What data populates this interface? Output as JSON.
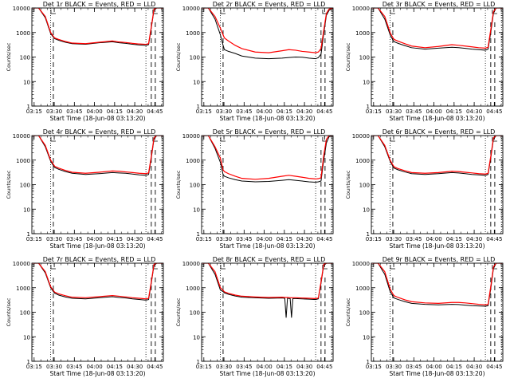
{
  "chart_data": [
    {
      "type": "line",
      "title": "Det 1r BLACK = Events, RED = LLD",
      "xlabel": "Start Time (18-Jun-08 03:13:20)",
      "ylabel": "Counts/sec",
      "x_ticks": [
        "03:15",
        "03:30",
        "03:45",
        "04:00",
        "04:15",
        "04:30",
        "04:45"
      ],
      "y_ticks": [
        "1",
        "10",
        "100",
        "1000",
        "10000"
      ],
      "y_scale": "log",
      "xlim_minutes": [
        0,
        98
      ],
      "ylim": [
        1,
        10000
      ],
      "x_minutes": [
        0,
        5,
        10,
        14,
        16,
        17,
        20,
        25,
        30,
        40,
        50,
        60,
        65,
        70,
        75,
        80,
        85,
        87,
        89,
        91,
        93,
        95,
        98
      ],
      "series": [
        {
          "color": "#000000",
          "values": [
            10000,
            10000,
            4000,
            900,
            650,
            560,
            480,
            400,
            350,
            330,
            380,
            420,
            380,
            360,
            330,
            310,
            300,
            320,
            1500,
            8000,
            10000,
            10000,
            10000
          ]
        },
        {
          "color": "#ff0000",
          "values": [
            10000,
            10000,
            4500,
            1000,
            700,
            600,
            520,
            430,
            370,
            350,
            400,
            450,
            410,
            390,
            360,
            340,
            330,
            350,
            1700,
            9000,
            10000,
            10000,
            10000
          ]
        }
      ],
      "dotted_lines_minutes": [
        14,
        85,
        97
      ],
      "dashed_lines_minutes": [
        16,
        89,
        92
      ]
    },
    {
      "type": "line",
      "title": "Det 2r BLACK = Events, RED = LLD",
      "xlabel": "Start Time (18-Jun-08 03:13:20)",
      "ylabel": "Counts/sec",
      "x_ticks": [
        "03:15",
        "03:30",
        "03:45",
        "04:00",
        "04:15",
        "04:30",
        "04:45"
      ],
      "y_ticks": [
        "1",
        "10",
        "100",
        "1000",
        "10000"
      ],
      "y_scale": "log",
      "xlim_minutes": [
        0,
        98
      ],
      "ylim": [
        1,
        10000
      ],
      "x_minutes": [
        0,
        5,
        10,
        14,
        16,
        17,
        20,
        25,
        30,
        40,
        50,
        60,
        65,
        70,
        75,
        80,
        85,
        87,
        89,
        91,
        93,
        95,
        98
      ],
      "series": [
        {
          "color": "#000000",
          "values": [
            10000,
            10000,
            3500,
            800,
            300,
            200,
            170,
            140,
            110,
            90,
            85,
            90,
            95,
            100,
            98,
            90,
            85,
            95,
            130,
            900,
            5000,
            8000,
            10000
          ]
        },
        {
          "color": "#ff0000",
          "values": [
            10000,
            10000,
            4500,
            1500,
            800,
            600,
            450,
            300,
            220,
            160,
            150,
            180,
            200,
            190,
            170,
            160,
            150,
            160,
            220,
            1200,
            6000,
            9000,
            10000
          ]
        }
      ],
      "dotted_lines_minutes": [
        14,
        85,
        97
      ],
      "dashed_lines_minutes": [
        16,
        89,
        92
      ]
    },
    {
      "type": "line",
      "title": "Det 3r BLACK = Events, RED = LLD",
      "xlabel": "Start Time (18-Jun-08 03:13:20)",
      "ylabel": "Counts/sec",
      "x_ticks": [
        "03:15",
        "03:30",
        "03:45",
        "04:00",
        "04:15",
        "04:30",
        "04:45"
      ],
      "y_ticks": [
        "1",
        "10",
        "100",
        "1000",
        "10000"
      ],
      "y_scale": "log",
      "xlim_minutes": [
        0,
        98
      ],
      "ylim": [
        1,
        10000
      ],
      "x_minutes": [
        0,
        5,
        10,
        14,
        16,
        17,
        20,
        25,
        30,
        40,
        50,
        60,
        65,
        70,
        75,
        80,
        85,
        87,
        89,
        91,
        93,
        95,
        98
      ],
      "series": [
        {
          "color": "#000000",
          "values": [
            10000,
            10000,
            3500,
            800,
            500,
            420,
            360,
            290,
            240,
            210,
            230,
            250,
            240,
            225,
            210,
            200,
            190,
            210,
            1000,
            6000,
            10000,
            10000,
            10000
          ]
        },
        {
          "color": "#ff0000",
          "values": [
            10000,
            10000,
            4500,
            1000,
            620,
            520,
            440,
            350,
            280,
            240,
            270,
            320,
            300,
            280,
            260,
            240,
            230,
            250,
            1300,
            7000,
            10000,
            10000,
            10000
          ]
        }
      ],
      "dotted_lines_minutes": [
        14,
        85,
        97
      ],
      "dashed_lines_minutes": [
        16,
        89,
        92
      ]
    },
    {
      "type": "line",
      "title": "Det 4r BLACK = Events, RED = LLD",
      "xlabel": "Start Time (18-Jun-08 03:13:20)",
      "ylabel": "Counts/sec",
      "x_ticks": [
        "03:15",
        "03:30",
        "03:45",
        "04:00",
        "04:15",
        "04:30",
        "04:45"
      ],
      "y_ticks": [
        "1",
        "10",
        "100",
        "1000",
        "10000"
      ],
      "y_scale": "log",
      "xlim_minutes": [
        0,
        98
      ],
      "ylim": [
        1,
        10000
      ],
      "x_minutes": [
        0,
        5,
        10,
        14,
        16,
        17,
        20,
        25,
        30,
        40,
        50,
        60,
        65,
        70,
        75,
        80,
        85,
        87,
        89,
        91,
        93,
        95,
        98
      ],
      "series": [
        {
          "color": "#000000",
          "values": [
            10000,
            10000,
            3500,
            900,
            600,
            500,
            420,
            340,
            290,
            260,
            280,
            310,
            300,
            290,
            270,
            250,
            240,
            260,
            1200,
            7000,
            10000,
            10000,
            10000
          ]
        },
        {
          "color": "#ff0000",
          "values": [
            10000,
            10000,
            4000,
            1000,
            680,
            560,
            470,
            380,
            320,
            290,
            320,
            360,
            350,
            330,
            310,
            290,
            280,
            300,
            1400,
            8000,
            10000,
            10000,
            10000
          ]
        }
      ],
      "dotted_lines_minutes": [
        14,
        85,
        97
      ],
      "dashed_lines_minutes": [
        16,
        89,
        92
      ]
    },
    {
      "type": "line",
      "title": "Det 5r BLACK = Events, RED = LLD",
      "xlabel": "Start Time (18-Jun-08 03:13:20)",
      "ylabel": "Counts/sec",
      "x_ticks": [
        "03:15",
        "03:30",
        "03:45",
        "04:00",
        "04:15",
        "04:30",
        "04:45"
      ],
      "y_ticks": [
        "1",
        "10",
        "100",
        "1000",
        "10000"
      ],
      "y_scale": "log",
      "xlim_minutes": [
        0,
        98
      ],
      "ylim": [
        1,
        10000
      ],
      "x_minutes": [
        0,
        5,
        10,
        14,
        16,
        17,
        20,
        25,
        30,
        40,
        50,
        60,
        65,
        70,
        75,
        80,
        85,
        87,
        89,
        91,
        93,
        95,
        98
      ],
      "series": [
        {
          "color": "#000000",
          "values": [
            10000,
            10000,
            3000,
            800,
            260,
            220,
            190,
            160,
            140,
            130,
            135,
            150,
            160,
            150,
            140,
            130,
            125,
            130,
            140,
            1000,
            5000,
            9000,
            10000
          ]
        },
        {
          "color": "#ff0000",
          "values": [
            10000,
            10000,
            3500,
            1200,
            400,
            340,
            280,
            220,
            180,
            165,
            180,
            220,
            240,
            220,
            200,
            180,
            170,
            175,
            190,
            1500,
            7000,
            10000,
            10000
          ]
        }
      ],
      "dotted_lines_minutes": [
        14,
        85,
        97
      ],
      "dashed_lines_minutes": [
        16,
        89,
        92
      ]
    },
    {
      "type": "line",
      "title": "Det 6r BLACK = Events, RED = LLD",
      "xlabel": "Start Time (18-Jun-08 03:13:20)",
      "ylabel": "Counts/sec",
      "x_ticks": [
        "03:15",
        "03:30",
        "03:45",
        "04:00",
        "04:15",
        "04:30",
        "04:45"
      ],
      "y_ticks": [
        "1",
        "10",
        "100",
        "1000",
        "10000"
      ],
      "y_scale": "log",
      "xlim_minutes": [
        0,
        98
      ],
      "ylim": [
        1,
        10000
      ],
      "x_minutes": [
        0,
        5,
        10,
        14,
        16,
        17,
        20,
        25,
        30,
        40,
        50,
        60,
        65,
        70,
        75,
        80,
        85,
        87,
        89,
        91,
        93,
        95,
        98
      ],
      "series": [
        {
          "color": "#000000",
          "values": [
            10000,
            10000,
            3500,
            900,
            560,
            470,
            400,
            330,
            280,
            260,
            280,
            310,
            300,
            280,
            260,
            250,
            240,
            260,
            1200,
            7000,
            10000,
            10000,
            10000
          ]
        },
        {
          "color": "#ff0000",
          "values": [
            10000,
            10000,
            4000,
            1000,
            640,
            530,
            450,
            370,
            310,
            290,
            310,
            350,
            340,
            320,
            300,
            280,
            270,
            290,
            1400,
            8000,
            10000,
            10000,
            10000
          ]
        }
      ],
      "dotted_lines_minutes": [
        14,
        85,
        97
      ],
      "dashed_lines_minutes": [
        16,
        89,
        92
      ]
    },
    {
      "type": "line",
      "title": "Det 7r BLACK = Events, RED = LLD",
      "xlabel": "Start Time (18-Jun-08 03:13:20)",
      "ylabel": "Counts/sec",
      "x_ticks": [
        "03:15",
        "03:30",
        "03:45",
        "04:00",
        "04:15",
        "04:30",
        "04:45"
      ],
      "y_ticks": [
        "1",
        "10",
        "100",
        "1000",
        "10000"
      ],
      "y_scale": "log",
      "xlim_minutes": [
        0,
        98
      ],
      "ylim": [
        1,
        10000
      ],
      "x_minutes": [
        0,
        5,
        10,
        14,
        16,
        17,
        20,
        25,
        30,
        40,
        50,
        60,
        65,
        70,
        75,
        80,
        85,
        87,
        89,
        91,
        93,
        95,
        98
      ],
      "series": [
        {
          "color": "#000000",
          "values": [
            10000,
            10000,
            4000,
            1000,
            700,
            600,
            500,
            420,
            370,
            350,
            390,
            430,
            400,
            380,
            350,
            330,
            310,
            330,
            1500,
            8000,
            10000,
            10000,
            10000
          ]
        },
        {
          "color": "#ff0000",
          "values": [
            10000,
            10000,
            4500,
            1100,
            780,
            660,
            560,
            470,
            410,
            390,
            430,
            480,
            450,
            420,
            390,
            370,
            350,
            370,
            1700,
            9000,
            10000,
            10000,
            10000
          ]
        }
      ],
      "dotted_lines_minutes": [
        14,
        85,
        97
      ],
      "dashed_lines_minutes": [
        16,
        89,
        92
      ]
    },
    {
      "type": "line",
      "title": "Det 8r BLACK = Events, RED = LLD",
      "xlabel": "Start Time (18-Jun-08 03:13:20)",
      "ylabel": "Counts/sec",
      "x_ticks": [
        "03:15",
        "03:30",
        "03:45",
        "04:00",
        "04:15",
        "04:30",
        "04:45"
      ],
      "y_ticks": [
        "1",
        "10",
        "100",
        "1000",
        "10000"
      ],
      "y_scale": "log",
      "xlim_minutes": [
        0,
        98
      ],
      "ylim": [
        1,
        10000
      ],
      "x_minutes": [
        0,
        5,
        10,
        14,
        16,
        17,
        20,
        25,
        30,
        40,
        50,
        60,
        62,
        63,
        64,
        66,
        67,
        68,
        70,
        75,
        80,
        85,
        87,
        89,
        91,
        93,
        95,
        98
      ],
      "series": [
        {
          "color": "#000000",
          "values": [
            10000,
            10000,
            3500,
            800,
            700,
            620,
            540,
            460,
            410,
            390,
            370,
            380,
            370,
            60,
            370,
            360,
            60,
            360,
            360,
            350,
            340,
            330,
            350,
            1500,
            8000,
            10000,
            10000,
            10000
          ]
        },
        {
          "color": "#ff0000",
          "values": [
            10000,
            10000,
            4500,
            1000,
            780,
            680,
            590,
            500,
            450,
            420,
            400,
            410,
            400,
            400,
            400,
            390,
            390,
            390,
            390,
            380,
            370,
            360,
            380,
            1700,
            9000,
            10000,
            10000,
            10000
          ]
        }
      ],
      "dotted_lines_minutes": [
        14,
        85,
        97
      ],
      "dashed_lines_minutes": [
        16,
        89,
        92
      ]
    },
    {
      "type": "line",
      "title": "Det 9r BLACK = Events, RED = LLD",
      "xlabel": "Start Time (18-Jun-08 03:13:20)",
      "ylabel": "Counts/sec",
      "x_ticks": [
        "03:15",
        "03:30",
        "03:45",
        "04:00",
        "04:15",
        "04:30",
        "04:45"
      ],
      "y_ticks": [
        "1",
        "10",
        "100",
        "1000",
        "10000"
      ],
      "y_scale": "log",
      "xlim_minutes": [
        0,
        98
      ],
      "ylim": [
        1,
        10000
      ],
      "x_minutes": [
        0,
        5,
        10,
        14,
        16,
        17,
        20,
        25,
        30,
        40,
        50,
        60,
        65,
        70,
        75,
        80,
        85,
        87,
        89,
        91,
        93,
        95,
        98
      ],
      "series": [
        {
          "color": "#000000",
          "values": [
            10000,
            10000,
            3500,
            700,
            450,
            380,
            330,
            270,
            230,
            210,
            200,
            210,
            205,
            195,
            185,
            180,
            175,
            185,
            900,
            6000,
            10000,
            10000,
            10000
          ]
        },
        {
          "color": "#ff0000",
          "values": [
            10000,
            10000,
            4500,
            900,
            560,
            470,
            400,
            320,
            270,
            240,
            230,
            250,
            250,
            240,
            225,
            210,
            200,
            210,
            1100,
            7000,
            10000,
            10000,
            10000
          ]
        }
      ],
      "dotted_lines_minutes": [
        14,
        85,
        97
      ],
      "dashed_lines_minutes": [
        16,
        89,
        92
      ]
    }
  ]
}
